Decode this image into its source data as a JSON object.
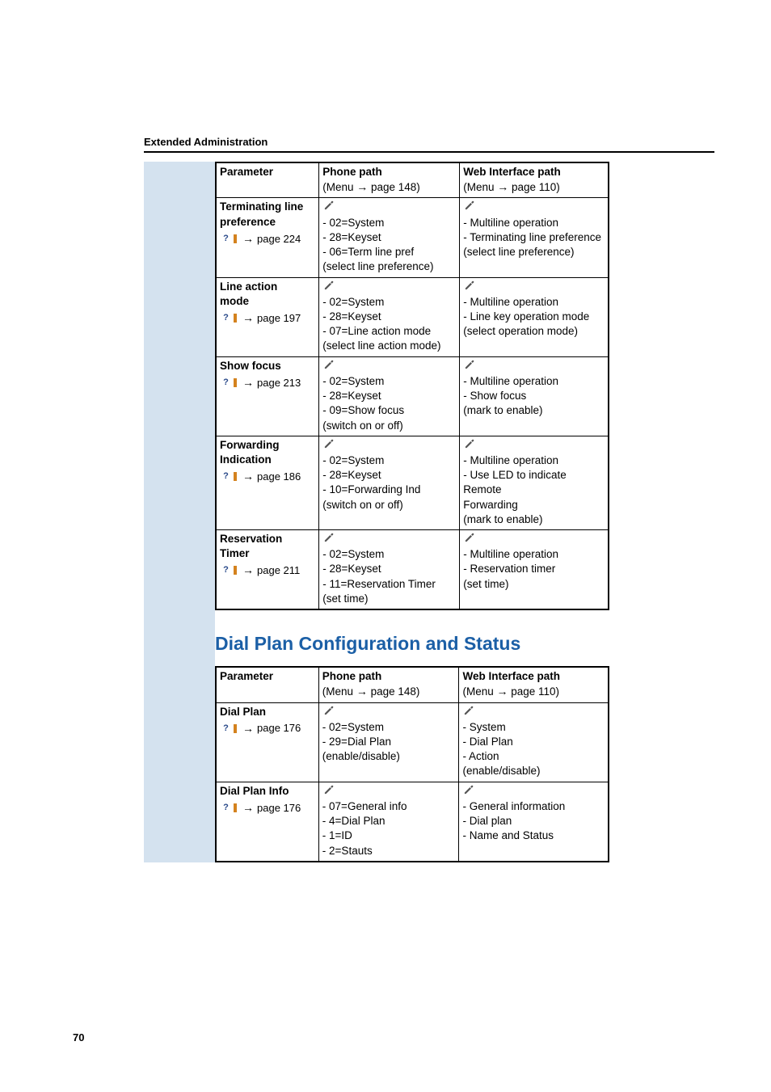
{
  "header": "Extended Administration",
  "page_number": "70",
  "table1": {
    "headers": {
      "param": "Parameter",
      "phone_title": "Phone path",
      "phone_sub_prefix": "(Menu ",
      "phone_sub_arrow": "→",
      "phone_sub_page": " page 148)",
      "web_title": "Web Interface path",
      "web_sub_prefix": "(Menu ",
      "web_sub_arrow": "→",
      "web_sub_page": " page 110)"
    },
    "rows": [
      {
        "param_lines": [
          "Terminating line",
          "preference"
        ],
        "page_ref": "page 224",
        "phone": [
          "- 02=System",
          "- 28=Keyset",
          "- 06=Term line pref",
          "(select line preference)"
        ],
        "web": [
          "- Multiline operation",
          "- Terminating line preference",
          "(select line preference)"
        ]
      },
      {
        "param_lines": [
          "Line action",
          "mode"
        ],
        "page_ref": "page 197",
        "phone": [
          "- 02=System",
          "- 28=Keyset",
          "- 07=Line action mode",
          "(select line action mode)"
        ],
        "web": [
          "- Multiline operation",
          "- Line key operation mode",
          "(select operation mode)"
        ]
      },
      {
        "param_lines": [
          "Show focus"
        ],
        "page_ref": "page 213",
        "phone": [
          "- 02=System",
          "- 28=Keyset",
          "- 09=Show focus",
          "(switch on or off)"
        ],
        "web": [
          "- Multiline operation",
          "- Show focus",
          "(mark to enable)"
        ]
      },
      {
        "param_lines": [
          "Forwarding",
          "Indication"
        ],
        "page_ref": "page 186",
        "phone": [
          "- 02=System",
          "- 28=Keyset",
          "- 10=Forwarding Ind",
          "(switch on or off)"
        ],
        "web": [
          "- Multiline operation",
          "- Use LED to indicate Remote",
          "Forwarding",
          "(mark to enable)"
        ]
      },
      {
        "param_lines": [
          "Reservation",
          "Timer"
        ],
        "page_ref": "page 211",
        "phone": [
          "- 02=System",
          "- 28=Keyset",
          "- 11=Reservation Timer",
          "(set time)"
        ],
        "web": [
          "- Multiline operation",
          "- Reservation timer",
          "(set time)"
        ]
      }
    ]
  },
  "section_heading": "Dial Plan Configuration and Status",
  "table2": {
    "headers": {
      "param": "Parameter",
      "phone_title": "Phone path",
      "phone_sub_prefix": "(Menu ",
      "phone_sub_arrow": "→",
      "phone_sub_page": " page 148)",
      "web_title": "Web Interface path",
      "web_sub_prefix": "(Menu ",
      "web_sub_arrow": "→",
      "web_sub_page": " page 110)"
    },
    "rows": [
      {
        "param_lines": [
          "Dial Plan"
        ],
        "page_ref": "page 176",
        "phone": [
          "- 02=System",
          "- 29=Dial Plan",
          "(enable/disable)"
        ],
        "web": [
          "- System",
          "- Dial Plan",
          "- Action",
          "(enable/disable)"
        ]
      },
      {
        "param_lines": [
          "Dial Plan Info"
        ],
        "page_ref": "page 176",
        "phone": [
          "- 07=General info",
          "- 4=Dial Plan",
          "  - 1=ID",
          "- 2=Stauts"
        ],
        "web": [
          "- General information",
          "- Dial plan",
          "- Name and Status"
        ]
      }
    ]
  },
  "colors": {
    "sidebar": "#d4e2ef",
    "heading": "#1b5fa6",
    "help_icon": "#2a4a8a",
    "help_marker": "#d4821e"
  }
}
